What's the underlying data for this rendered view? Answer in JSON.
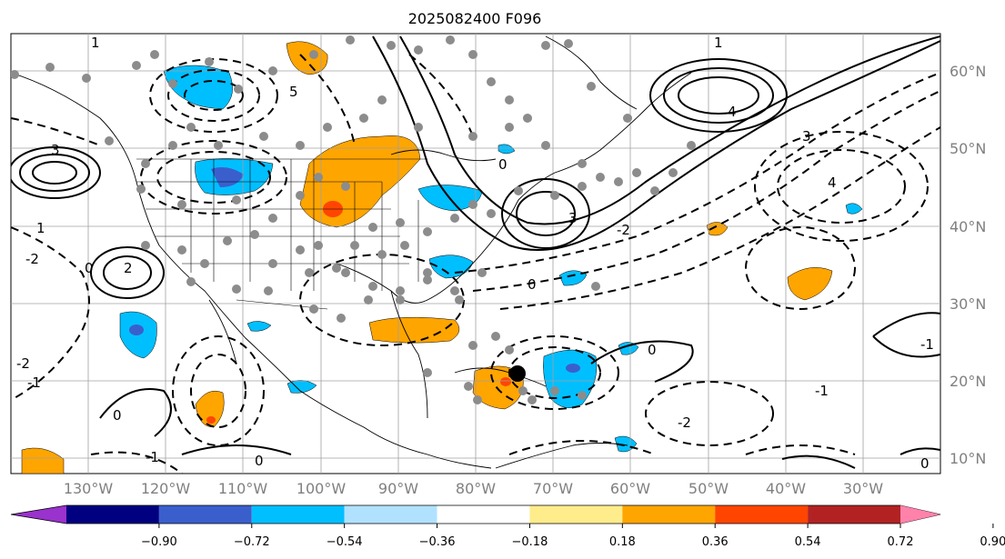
{
  "title": "2025082400 F096",
  "map": {
    "lon_labels": [
      "130°W",
      "120°W",
      "110°W",
      "100°W",
      "90°W",
      "80°W",
      "70°W",
      "60°W",
      "50°W",
      "40°W",
      "30°W"
    ],
    "lat_labels": [
      "60°N",
      "50°N",
      "40°N",
      "30°N",
      "20°N",
      "10°N"
    ],
    "contour_labels": [
      "0",
      "1",
      "2",
      "3",
      "4",
      "5",
      "-1",
      "-2"
    ],
    "marker": "storm-center"
  },
  "colorbar": {
    "colors": [
      "#9a32cd",
      "#000080",
      "#3a5fcd",
      "#00bfff",
      "#b0e2ff",
      "#ffffff",
      "#ffec8b",
      "#ffa500",
      "#ff4500",
      "#b22222",
      "#ff82ab"
    ],
    "under_color": "#9a32cd",
    "over_color": "#ff82ab",
    "tick_labels": [
      "−0.90",
      "−0.72",
      "−0.54",
      "−0.36",
      "−0.18",
      "0.18",
      "0.36",
      "0.54",
      "0.72",
      "0.90"
    ]
  }
}
